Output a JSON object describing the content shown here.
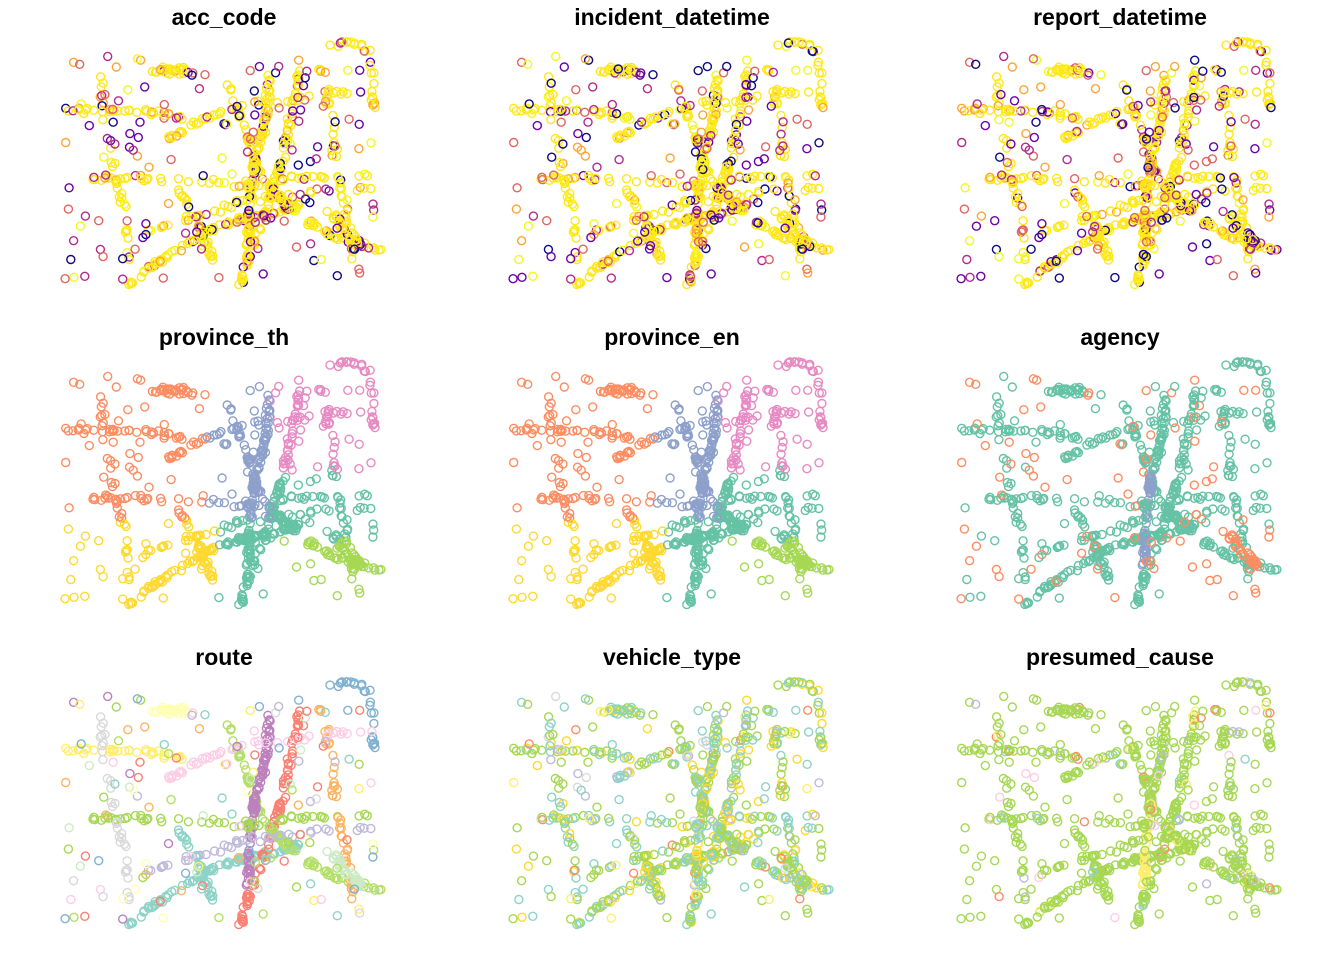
{
  "chart_data": [
    {
      "type": "scatter",
      "title": "acc_code",
      "palette": [
        "#0d0887",
        "#6a00a8",
        "#b12a90",
        "#e16462",
        "#fca636",
        "#f0f921"
      ],
      "dominant": "#ffe81a",
      "mode": "continuous"
    },
    {
      "type": "scatter",
      "title": "incident_datetime",
      "palette": [
        "#0d0887",
        "#6a00a8",
        "#b12a90",
        "#e16462",
        "#fca636",
        "#f0f921"
      ],
      "dominant": "#ffe81a",
      "mode": "continuous"
    },
    {
      "type": "scatter",
      "title": "report_datetime",
      "palette": [
        "#0d0887",
        "#6a00a8",
        "#b12a90",
        "#e16462",
        "#fca636",
        "#f0f921"
      ],
      "dominant": "#ffe81a",
      "mode": "continuous"
    },
    {
      "type": "scatter",
      "title": "province_th",
      "palette": [
        "#66c2a5",
        "#fc8d62",
        "#8da0cb",
        "#e78ac3",
        "#a6d854",
        "#ffd92f"
      ],
      "mode": "regions"
    },
    {
      "type": "scatter",
      "title": "province_en",
      "palette": [
        "#66c2a5",
        "#fc8d62",
        "#8da0cb",
        "#e78ac3",
        "#a6d854",
        "#ffd92f"
      ],
      "mode": "regions"
    },
    {
      "type": "scatter",
      "title": "agency",
      "palette": [
        "#66c2a5",
        "#fc8d62",
        "#8da0cb"
      ],
      "mode": "agency"
    },
    {
      "type": "scatter",
      "title": "route",
      "palette": [
        "#8dd3c7",
        "#ffffb3",
        "#bebada",
        "#fb8072",
        "#80b1d3",
        "#fdb462",
        "#b3de69",
        "#fccde5",
        "#d9d9d9",
        "#bc80bd",
        "#ccebc5",
        "#ffed6f",
        "#a6d854"
      ],
      "mode": "route"
    },
    {
      "type": "scatter",
      "title": "vehicle_type",
      "palette": [
        "#a6d854",
        "#8dd3c7",
        "#ffd92f",
        "#fc8d62",
        "#d9d9d9",
        "#bebada",
        "#ffed6f"
      ],
      "mode": "vehicle"
    },
    {
      "type": "scatter",
      "title": "presumed_cause",
      "palette": [
        "#a6d854",
        "#ffed6f",
        "#bebada",
        "#8dd3c7",
        "#fccde5",
        "#fc8d62"
      ],
      "mode": "cause"
    }
  ]
}
